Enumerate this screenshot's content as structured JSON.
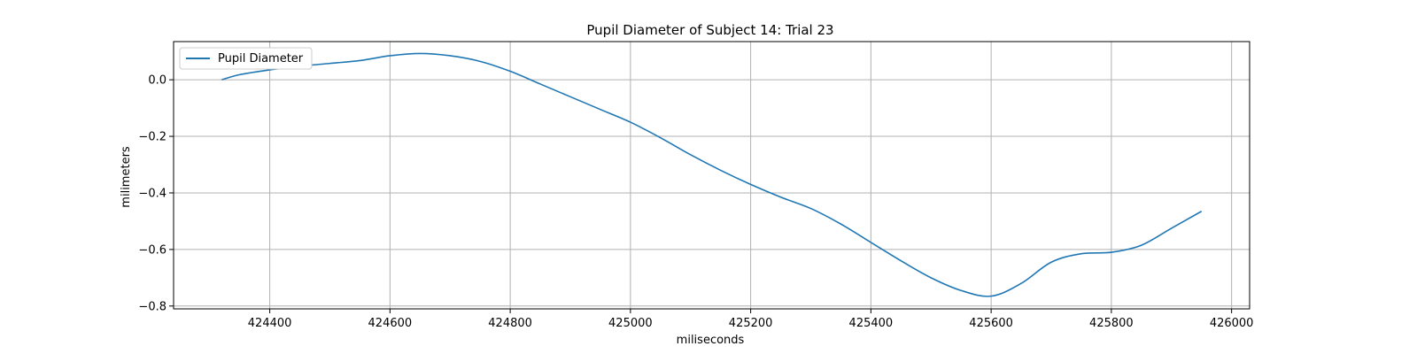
{
  "chart_data": {
    "type": "line",
    "title": "Pupil Diameter of Subject 14: Trial 23",
    "xlabel": "miliseconds",
    "ylabel": "milimeters",
    "xlim": [
      424240,
      426030
    ],
    "ylim": [
      -0.81,
      0.135
    ],
    "xticks": [
      424400,
      424600,
      424800,
      425000,
      425200,
      425400,
      425600,
      425800,
      426000
    ],
    "yticks": [
      0.0,
      -0.2,
      -0.4,
      -0.6,
      -0.8
    ],
    "grid": true,
    "legend_position": "upper-left",
    "series": [
      {
        "name": "Pupil Diameter",
        "color": "#1f77b4",
        "x": [
          424320,
          424350,
          424400,
          424450,
          424500,
          424550,
          424600,
          424650,
          424700,
          424750,
          424800,
          424850,
          424900,
          424950,
          425000,
          425050,
          425100,
          425150,
          425200,
          425250,
          425300,
          425350,
          425400,
          425450,
          425500,
          425550,
          425600,
          425650,
          425700,
          425750,
          425800,
          425850,
          425900,
          425950
        ],
        "y": [
          0.0,
          0.018,
          0.035,
          0.048,
          0.058,
          0.068,
          0.085,
          0.093,
          0.085,
          0.065,
          0.03,
          -0.015,
          -0.06,
          -0.105,
          -0.15,
          -0.205,
          -0.265,
          -0.32,
          -0.37,
          -0.415,
          -0.455,
          -0.51,
          -0.575,
          -0.64,
          -0.7,
          -0.745,
          -0.765,
          -0.72,
          -0.645,
          -0.615,
          -0.61,
          -0.585,
          -0.525,
          -0.465
        ]
      }
    ]
  }
}
